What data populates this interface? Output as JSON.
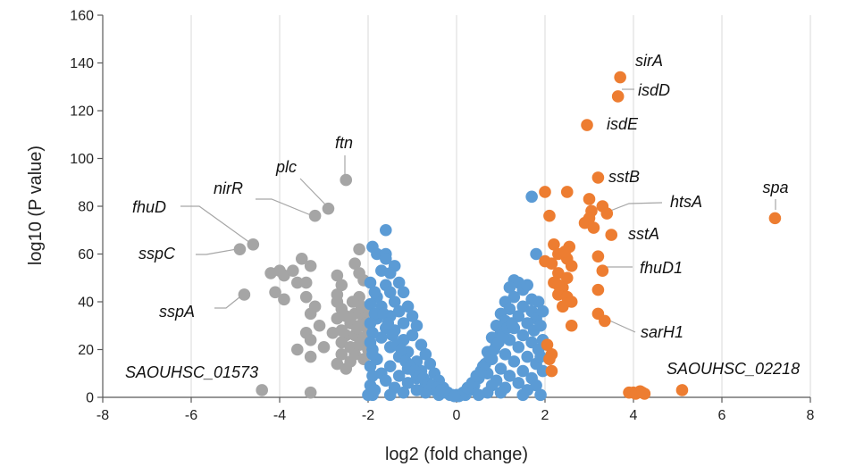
{
  "chart_data": {
    "type": "scatter",
    "title": "",
    "xlabel": "log2 (fold change)",
    "ylabel": "log10 (P value)",
    "xlim": [
      -8,
      8
    ],
    "ylim": [
      0,
      160
    ],
    "x_ticks": [
      -8,
      -6,
      -4,
      -2,
      0,
      2,
      4,
      6,
      8
    ],
    "y_ticks": [
      0,
      20,
      40,
      60,
      80,
      100,
      120,
      140,
      160
    ],
    "grid": "vertical",
    "legend": "none",
    "colors": {
      "down": "#a5a5a5",
      "neutral": "#5b9bd5",
      "up": "#ed7d31",
      "leader": "#a6a6a6"
    },
    "series": [
      {
        "group": "down",
        "points": [
          [
            -2.5,
            91
          ],
          [
            -2.9,
            79
          ],
          [
            -3.2,
            76
          ],
          [
            -4.6,
            64
          ],
          [
            -4.9,
            62
          ],
          [
            -4.0,
            53
          ],
          [
            -4.2,
            52
          ],
          [
            -3.9,
            51
          ],
          [
            -3.7,
            53
          ],
          [
            -3.6,
            48
          ],
          [
            -3.4,
            48
          ],
          [
            -3.3,
            55
          ],
          [
            -3.5,
            58
          ],
          [
            -4.1,
            44
          ],
          [
            -4.8,
            43
          ],
          [
            -3.9,
            41
          ],
          [
            -3.4,
            42
          ],
          [
            -3.2,
            38
          ],
          [
            -3.3,
            35
          ],
          [
            -3.1,
            30
          ],
          [
            -3.4,
            27
          ],
          [
            -3.3,
            24
          ],
          [
            -3.0,
            21
          ],
          [
            -3.3,
            17
          ],
          [
            -3.6,
            20
          ],
          [
            -2.8,
            27
          ],
          [
            -2.7,
            51
          ],
          [
            -2.6,
            47
          ],
          [
            -2.7,
            43
          ],
          [
            -2.7,
            40
          ],
          [
            -2.6,
            37
          ],
          [
            -2.5,
            34
          ],
          [
            -2.7,
            33
          ],
          [
            -2.4,
            31
          ],
          [
            -2.6,
            28
          ],
          [
            -2.5,
            26
          ],
          [
            -2.6,
            23
          ],
          [
            -2.4,
            21
          ],
          [
            -2.6,
            18
          ],
          [
            -2.4,
            15
          ],
          [
            -2.7,
            14
          ],
          [
            -2.5,
            12
          ],
          [
            -2.2,
            62
          ],
          [
            -2.3,
            56
          ],
          [
            -2.2,
            52
          ],
          [
            -2.1,
            49
          ],
          [
            -2.2,
            42
          ],
          [
            -2.0,
            38
          ],
          [
            -2.3,
            35
          ],
          [
            -2.1,
            33
          ],
          [
            -2.2,
            30
          ],
          [
            -2.0,
            28
          ],
          [
            -2.3,
            26
          ],
          [
            -2.1,
            25
          ],
          [
            -2.2,
            22
          ],
          [
            -2.0,
            20
          ],
          [
            -2.3,
            18
          ],
          [
            -2.1,
            16
          ],
          [
            -2.05,
            36
          ],
          [
            -2.15,
            38
          ],
          [
            -2.05,
            31
          ],
          [
            -2.25,
            29
          ],
          [
            -2.35,
            40
          ],
          [
            -2.4,
            33
          ],
          [
            -4.4,
            3
          ],
          [
            -3.3,
            2
          ]
        ]
      },
      {
        "group": "neutral",
        "points": [
          [
            1.7,
            84
          ],
          [
            -1.6,
            70
          ],
          [
            -1.9,
            63
          ],
          [
            -1.8,
            60
          ],
          [
            -1.6,
            60
          ],
          [
            -1.6,
            58
          ],
          [
            -1.4,
            55
          ],
          [
            -1.7,
            53
          ],
          [
            -1.5,
            52
          ],
          [
            -1.3,
            48
          ],
          [
            -1.6,
            47
          ],
          [
            -1.2,
            44
          ],
          [
            -1.5,
            44
          ],
          [
            -1.8,
            42
          ],
          [
            -1.4,
            40
          ],
          [
            -1.1,
            38
          ],
          [
            -1.7,
            38
          ],
          [
            -1.3,
            36
          ],
          [
            -1.0,
            34
          ],
          [
            -1.5,
            34
          ],
          [
            -1.8,
            33
          ],
          [
            -1.2,
            31
          ],
          [
            -0.9,
            30
          ],
          [
            -1.6,
            29
          ],
          [
            -1.4,
            28
          ],
          [
            -1.0,
            26
          ],
          [
            -1.7,
            25
          ],
          [
            -1.2,
            24
          ],
          [
            -0.8,
            22
          ],
          [
            -1.5,
            21
          ],
          [
            -1.9,
            20
          ],
          [
            -1.1,
            19
          ],
          [
            -0.7,
            18
          ],
          [
            -1.3,
            17
          ],
          [
            -1.8,
            16
          ],
          [
            -0.9,
            15
          ],
          [
            -0.6,
            14
          ],
          [
            -1.5,
            13
          ],
          [
            -1.1,
            12
          ],
          [
            -0.8,
            11
          ],
          [
            -1.7,
            10
          ],
          [
            -0.5,
            10
          ],
          [
            -1.3,
            9
          ],
          [
            -0.9,
            8
          ],
          [
            -0.4,
            7
          ],
          [
            -1.6,
            7
          ],
          [
            -1.1,
            6
          ],
          [
            -0.7,
            5
          ],
          [
            -0.3,
            4
          ],
          [
            -1.4,
            4
          ],
          [
            -0.9,
            3
          ],
          [
            -0.5,
            3
          ],
          [
            -0.2,
            2
          ],
          [
            -1.2,
            2
          ],
          [
            -0.7,
            2
          ],
          [
            -0.1,
            1
          ],
          [
            -1.9,
            1
          ],
          [
            -1.5,
            1
          ],
          [
            -0.4,
            1
          ],
          [
            -2.0,
            1
          ],
          [
            -1.95,
            48
          ],
          [
            -1.85,
            44
          ],
          [
            -1.95,
            39
          ],
          [
            -1.85,
            35
          ],
          [
            -1.95,
            31
          ],
          [
            -1.9,
            27
          ],
          [
            -1.95,
            23
          ],
          [
            -1.9,
            18
          ],
          [
            -1.95,
            13
          ],
          [
            -1.9,
            9
          ],
          [
            -1.95,
            5
          ],
          [
            -1.85,
            3
          ],
          [
            -1.65,
            35
          ],
          [
            -1.55,
            31
          ],
          [
            -1.45,
            26
          ],
          [
            -1.35,
            22
          ],
          [
            -1.25,
            20
          ],
          [
            -1.15,
            15
          ],
          [
            -1.05,
            13
          ],
          [
            -0.95,
            11
          ],
          [
            -0.85,
            9
          ],
          [
            -0.75,
            8
          ],
          [
            -0.65,
            6
          ],
          [
            -0.55,
            5
          ],
          [
            -0.45,
            4
          ],
          [
            -0.35,
            3
          ],
          [
            -0.25,
            2
          ],
          [
            -0.15,
            1
          ],
          [
            1.4,
            48
          ],
          [
            1.3,
            49
          ],
          [
            1.2,
            46
          ],
          [
            1.5,
            45
          ],
          [
            1.6,
            47
          ],
          [
            1.3,
            42
          ],
          [
            1.7,
            41
          ],
          [
            1.1,
            40
          ],
          [
            1.8,
            60
          ],
          [
            1.5,
            38
          ],
          [
            1.2,
            37
          ],
          [
            1.7,
            36
          ],
          [
            1.0,
            35
          ],
          [
            1.4,
            34
          ],
          [
            1.8,
            33
          ],
          [
            1.1,
            32
          ],
          [
            1.6,
            31
          ],
          [
            0.9,
            30
          ],
          [
            1.3,
            29
          ],
          [
            1.75,
            28
          ],
          [
            1.0,
            27
          ],
          [
            1.5,
            26
          ],
          [
            0.8,
            25
          ],
          [
            1.2,
            24
          ],
          [
            1.7,
            23
          ],
          [
            0.9,
            22
          ],
          [
            1.4,
            21
          ],
          [
            1.85,
            20
          ],
          [
            0.7,
            19
          ],
          [
            1.1,
            18
          ],
          [
            1.6,
            17
          ],
          [
            0.8,
            16
          ],
          [
            1.3,
            15
          ],
          [
            1.8,
            14
          ],
          [
            0.6,
            13
          ],
          [
            1.0,
            12
          ],
          [
            1.5,
            11
          ],
          [
            0.7,
            10
          ],
          [
            1.2,
            9
          ],
          [
            1.7,
            8
          ],
          [
            0.5,
            8
          ],
          [
            0.9,
            7
          ],
          [
            1.4,
            6
          ],
          [
            0.4,
            5
          ],
          [
            0.8,
            5
          ],
          [
            1.1,
            4
          ],
          [
            1.6,
            3
          ],
          [
            0.3,
            3
          ],
          [
            0.7,
            2
          ],
          [
            1.0,
            2
          ],
          [
            1.5,
            1
          ],
          [
            0.2,
            1
          ],
          [
            0.5,
            1
          ],
          [
            1.9,
            1
          ],
          [
            1.8,
            5
          ],
          [
            1.85,
            40
          ],
          [
            1.95,
            24
          ],
          [
            1.9,
            17
          ],
          [
            1.95,
            11
          ],
          [
            1.9,
            30
          ],
          [
            1.95,
            36
          ],
          [
            0.15,
            2
          ],
          [
            0.1,
            1
          ],
          [
            0.25,
            4
          ],
          [
            0.35,
            6
          ],
          [
            0.45,
            9
          ],
          [
            0.55,
            11
          ],
          [
            0.65,
            14
          ],
          [
            0.75,
            17
          ],
          [
            0.85,
            20
          ],
          [
            0.95,
            23
          ],
          [
            1.05,
            26
          ],
          [
            1.15,
            29
          ],
          [
            1.25,
            31
          ],
          [
            0.0,
            1
          ],
          [
            0.05,
            0.5
          ],
          [
            -0.05,
            0.5
          ]
        ]
      },
      {
        "group": "up",
        "points": [
          [
            3.7,
            134
          ],
          [
            3.65,
            126
          ],
          [
            2.95,
            114
          ],
          [
            3.2,
            92
          ],
          [
            2.0,
            86
          ],
          [
            2.5,
            86
          ],
          [
            3.0,
            83
          ],
          [
            3.3,
            80
          ],
          [
            3.4,
            77
          ],
          [
            3.05,
            78
          ],
          [
            3.0,
            75
          ],
          [
            2.9,
            73
          ],
          [
            3.1,
            71
          ],
          [
            2.1,
            76
          ],
          [
            7.2,
            75
          ],
          [
            3.5,
            68
          ],
          [
            2.2,
            64
          ],
          [
            2.55,
            63
          ],
          [
            2.3,
            60
          ],
          [
            2.0,
            57
          ],
          [
            2.15,
            56
          ],
          [
            2.5,
            58
          ],
          [
            2.6,
            55
          ],
          [
            2.3,
            52
          ],
          [
            2.5,
            50
          ],
          [
            3.2,
            59
          ],
          [
            3.3,
            53
          ],
          [
            2.2,
            48
          ],
          [
            2.4,
            46
          ],
          [
            2.3,
            43
          ],
          [
            2.5,
            42
          ],
          [
            2.4,
            38
          ],
          [
            2.6,
            40
          ],
          [
            3.2,
            45
          ],
          [
            3.2,
            35
          ],
          [
            3.35,
            32
          ],
          [
            2.6,
            30
          ],
          [
            2.05,
            22
          ],
          [
            2.15,
            18
          ],
          [
            2.1,
            16
          ],
          [
            2.15,
            11
          ],
          [
            2.3,
            47
          ],
          [
            2.45,
            61
          ],
          [
            3.9,
            2
          ],
          [
            4.0,
            2
          ],
          [
            4.05,
            1.5
          ],
          [
            4.15,
            2.5
          ],
          [
            4.2,
            2
          ],
          [
            4.25,
            1.5
          ],
          [
            5.1,
            3
          ]
        ]
      }
    ],
    "annotations": [
      {
        "text": "ftn",
        "x": -2.5,
        "y": 91
      },
      {
        "text": "plc",
        "x": -2.9,
        "y": 79
      },
      {
        "text": "nirR",
        "x": -3.2,
        "y": 76
      },
      {
        "text": "fhuD",
        "x": -4.6,
        "y": 64
      },
      {
        "text": "sspC",
        "x": -4.9,
        "y": 62
      },
      {
        "text": "sspA",
        "x": -4.8,
        "y": 43
      },
      {
        "text": "SAOUHSC_01573",
        "x": -4.4,
        "y": 3
      },
      {
        "text": "sirA",
        "x": 3.7,
        "y": 134
      },
      {
        "text": "isdD",
        "x": 3.65,
        "y": 126
      },
      {
        "text": "isdE",
        "x": 2.95,
        "y": 114
      },
      {
        "text": "sstB",
        "x": 3.2,
        "y": 92
      },
      {
        "text": "htsA",
        "x": 3.4,
        "y": 77
      },
      {
        "text": "sstA",
        "x": 3.5,
        "y": 68
      },
      {
        "text": "fhuD1",
        "x": 3.2,
        "y": 59
      },
      {
        "text": "sarH1",
        "x": 3.35,
        "y": 32
      },
      {
        "text": "spa",
        "x": 7.2,
        "y": 75
      },
      {
        "text": "SAOUHSC_02218",
        "x": 5.1,
        "y": 3
      }
    ]
  }
}
